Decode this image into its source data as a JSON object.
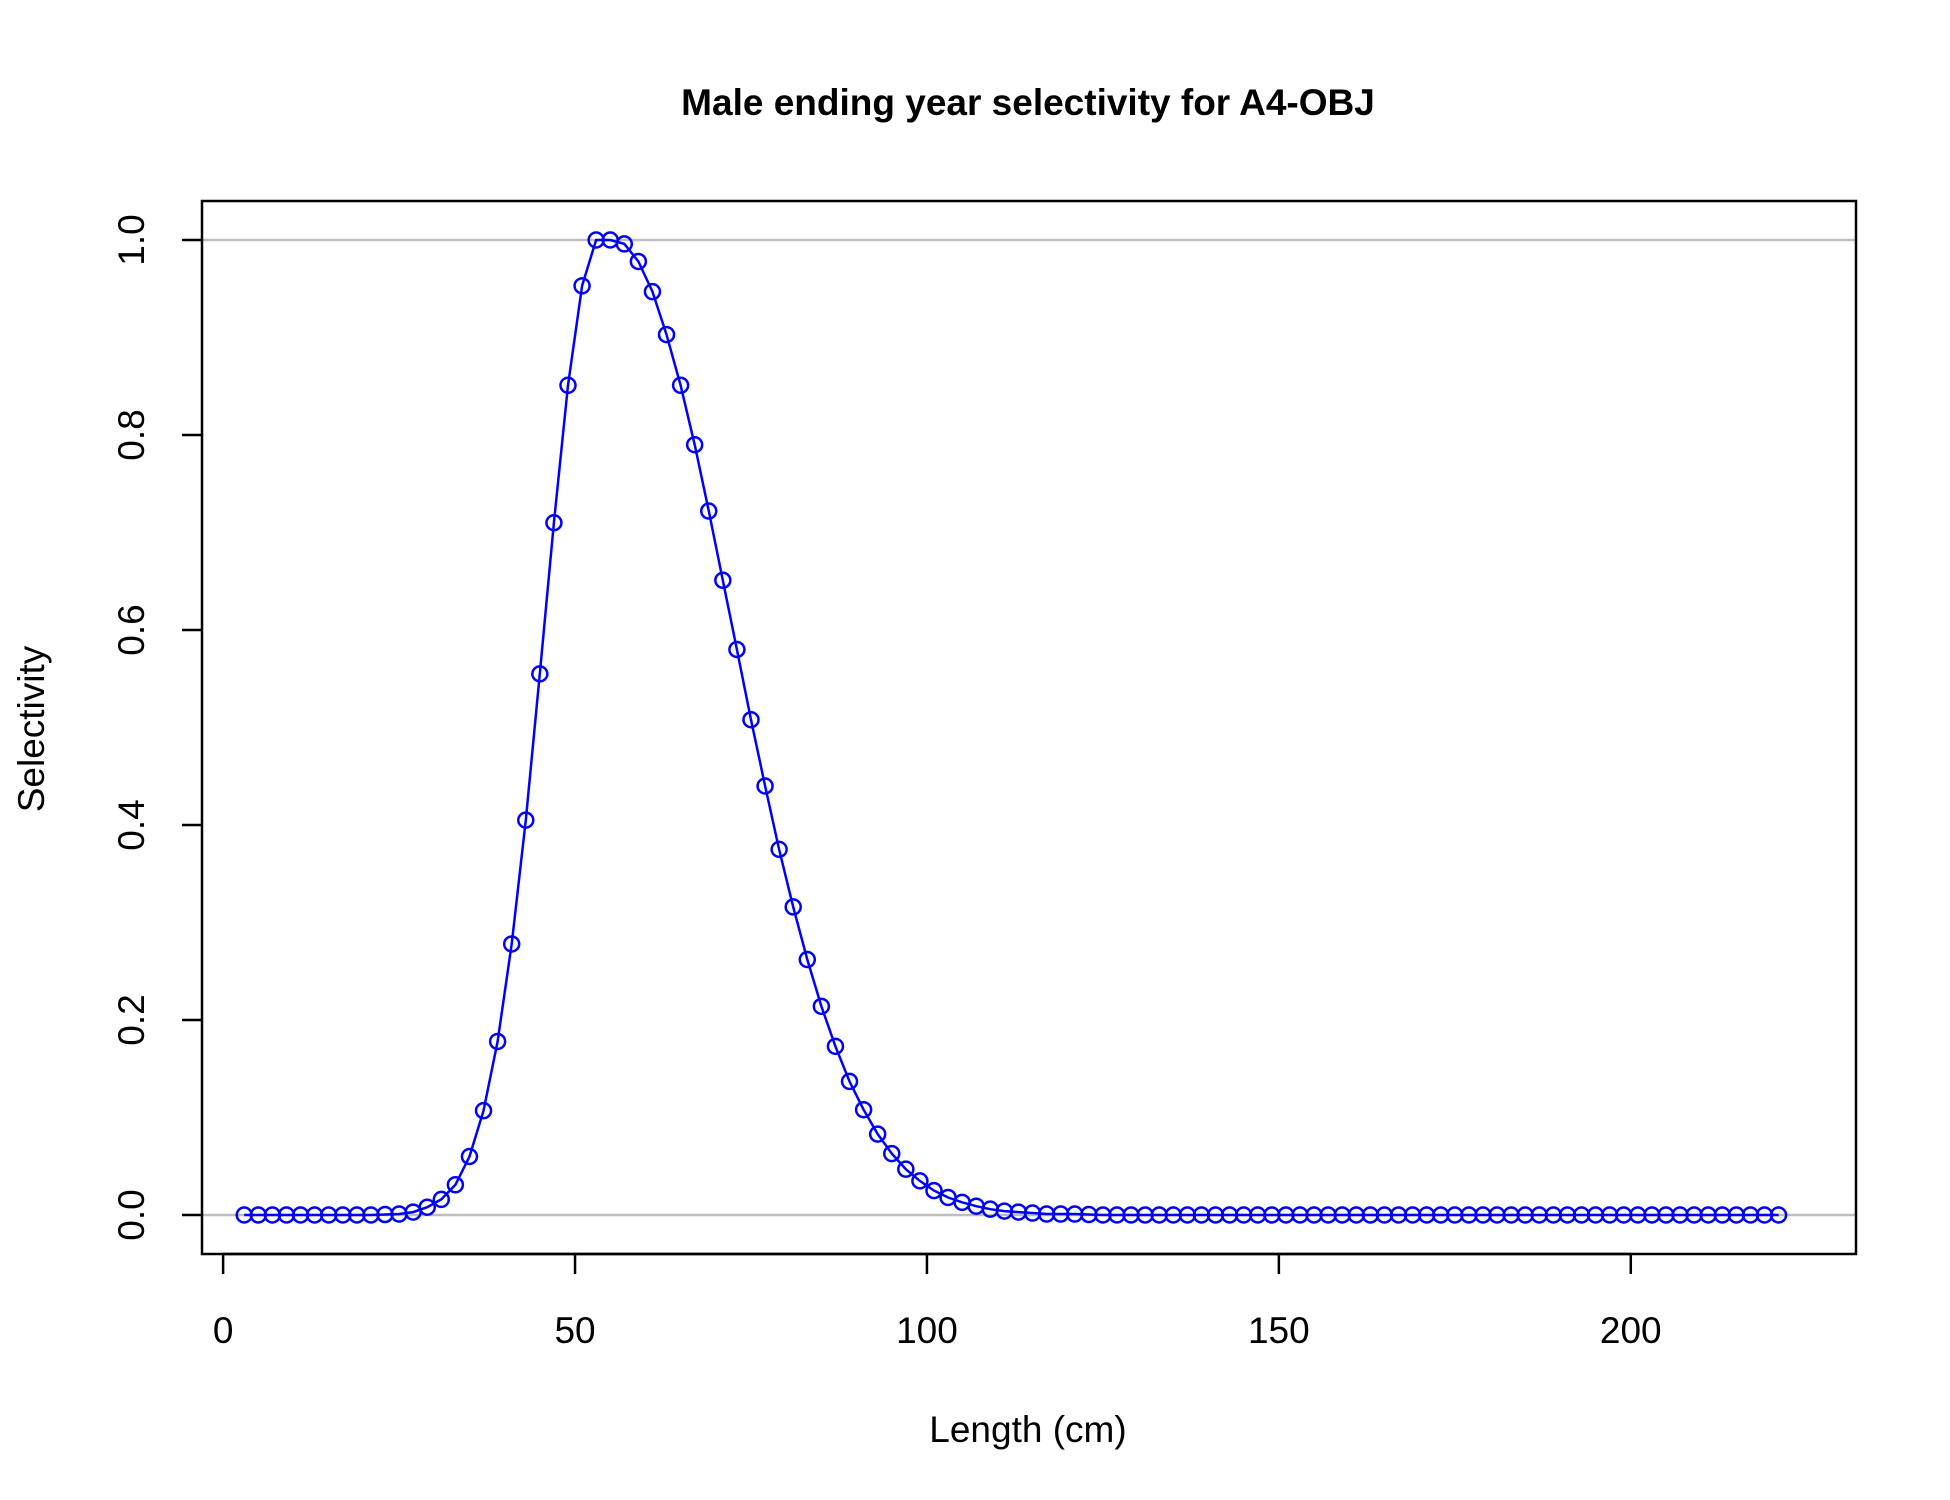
{
  "chart_data": {
    "type": "line",
    "title": "Male ending year selectivity for A4-OBJ",
    "xlabel": "Length (cm)",
    "ylabel": "Selectivity",
    "xlim": [
      -3,
      232
    ],
    "ylim": [
      -0.04,
      1.04
    ],
    "xticks": [
      0,
      50,
      100,
      150,
      200
    ],
    "yticks": [
      0.0,
      0.2,
      0.4,
      0.6,
      0.8,
      1.0
    ],
    "xtick_labels": [
      "0",
      "50",
      "100",
      "150",
      "200"
    ],
    "ytick_labels": [
      "0.0",
      "0.2",
      "0.4",
      "0.6",
      "0.8",
      "1.0"
    ],
    "reference_lines_y": [
      0,
      1
    ],
    "reference_line_color": "#bebebe",
    "series_color": "#0000ff",
    "marker": "open-circle",
    "x": [
      3,
      5,
      7,
      9,
      11,
      13,
      15,
      17,
      19,
      21,
      23,
      25,
      27,
      29,
      31,
      33,
      35,
      37,
      39,
      41,
      43,
      45,
      47,
      49,
      51,
      53,
      55,
      57,
      59,
      61,
      63,
      65,
      67,
      69,
      71,
      73,
      75,
      77,
      79,
      81,
      83,
      85,
      87,
      89,
      91,
      93,
      95,
      97,
      99,
      101,
      103,
      105,
      107,
      109,
      111,
      113,
      115,
      117,
      119,
      121,
      123,
      125,
      127,
      129,
      131,
      133,
      135,
      137,
      139,
      141,
      143,
      145,
      147,
      149,
      151,
      153,
      155,
      157,
      159,
      161,
      163,
      165,
      167,
      169,
      171,
      173,
      175,
      177,
      179,
      181,
      183,
      185,
      187,
      189,
      191,
      193,
      195,
      197,
      199,
      201,
      203,
      205,
      207,
      209,
      211,
      213,
      215,
      217,
      219,
      221
    ],
    "y": [
      0,
      0,
      0,
      0,
      0,
      0,
      0,
      0,
      0,
      0,
      0.0005,
      0.001,
      0.003,
      0.008,
      0.016,
      0.031,
      0.06,
      0.107,
      0.178,
      0.278,
      0.405,
      0.555,
      0.71,
      0.851,
      0.953,
      1.0,
      1.0,
      0.996,
      0.978,
      0.947,
      0.903,
      0.851,
      0.79,
      0.722,
      0.651,
      0.58,
      0.508,
      0.44,
      0.375,
      0.316,
      0.262,
      0.214,
      0.173,
      0.137,
      0.108,
      0.083,
      0.063,
      0.047,
      0.035,
      0.025,
      0.018,
      0.013,
      0.009,
      0.006,
      0.004,
      0.003,
      0.002,
      0.001,
      0.001,
      0.001,
      0.0005,
      0,
      0,
      0,
      0,
      0,
      0,
      0,
      0,
      0,
      0,
      0,
      0,
      0,
      0,
      0,
      0,
      0,
      0,
      0,
      0,
      0,
      0,
      0,
      0,
      0,
      0,
      0,
      0,
      0,
      0,
      0,
      0,
      0,
      0,
      0,
      0,
      0,
      0,
      0,
      0,
      0,
      0,
      0,
      0,
      0,
      0,
      0,
      0,
      0
    ]
  }
}
